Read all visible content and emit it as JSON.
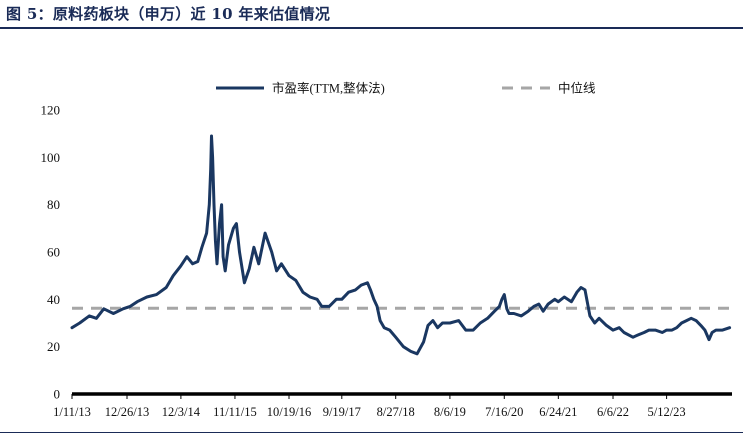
{
  "title": "图 5：原料药板块（申万）近 10 年来估值情况",
  "chart_data": {
    "type": "line",
    "title": "图 5：原料药板块（申万）近 10 年来估值情况",
    "xlabel": "",
    "ylabel": "",
    "ylim": [
      0,
      120
    ],
    "yticks": [
      0,
      20,
      40,
      60,
      80,
      100,
      120
    ],
    "xlim": [
      "2013-01-11",
      "2024-06-30"
    ],
    "xtick_labels": [
      "1/11/13",
      "12/26/13",
      "12/3/14",
      "11/11/15",
      "10/19/16",
      "9/19/17",
      "8/27/18",
      "8/6/19",
      "7/16/20",
      "6/24/21",
      "6/6/22",
      "5/12/23"
    ],
    "xtick_dates": [
      "2013-01-11",
      "2013-12-26",
      "2014-12-03",
      "2015-11-11",
      "2016-10-19",
      "2017-09-19",
      "2018-08-27",
      "2019-08-06",
      "2020-07-16",
      "2021-06-24",
      "2022-06-06",
      "2023-05-12"
    ],
    "grid": false,
    "legend_position": "top",
    "series": [
      {
        "name": "市盈率(TTM,整体法)",
        "color": "#1a3761",
        "style": "solid",
        "points": [
          [
            "2013-01-11",
            28
          ],
          [
            "2013-03-01",
            30
          ],
          [
            "2013-05-01",
            33
          ],
          [
            "2013-06-15",
            32
          ],
          [
            "2013-08-01",
            36
          ],
          [
            "2013-10-01",
            34
          ],
          [
            "2013-12-01",
            36
          ],
          [
            "2014-01-15",
            37
          ],
          [
            "2014-03-01",
            39
          ],
          [
            "2014-05-01",
            41
          ],
          [
            "2014-07-01",
            42
          ],
          [
            "2014-09-01",
            45
          ],
          [
            "2014-10-15",
            50
          ],
          [
            "2014-12-01",
            54
          ],
          [
            "2015-01-10",
            58
          ],
          [
            "2015-02-15",
            55
          ],
          [
            "2015-03-20",
            56
          ],
          [
            "2015-04-15",
            62
          ],
          [
            "2015-05-15",
            68
          ],
          [
            "2015-06-01",
            80
          ],
          [
            "2015-06-10",
            95
          ],
          [
            "2015-06-15",
            109
          ],
          [
            "2015-06-22",
            100
          ],
          [
            "2015-07-01",
            80
          ],
          [
            "2015-07-10",
            65
          ],
          [
            "2015-07-20",
            55
          ],
          [
            "2015-08-05",
            72
          ],
          [
            "2015-08-18",
            80
          ],
          [
            "2015-08-28",
            58
          ],
          [
            "2015-09-10",
            52
          ],
          [
            "2015-10-01",
            63
          ],
          [
            "2015-11-01",
            70
          ],
          [
            "2015-11-20",
            72
          ],
          [
            "2015-12-10",
            60
          ],
          [
            "2016-01-10",
            47
          ],
          [
            "2016-02-10",
            53
          ],
          [
            "2016-03-10",
            62
          ],
          [
            "2016-04-10",
            55
          ],
          [
            "2016-05-20",
            68
          ],
          [
            "2016-07-01",
            60
          ],
          [
            "2016-08-01",
            52
          ],
          [
            "2016-09-01",
            55
          ],
          [
            "2016-10-19",
            50
          ],
          [
            "2016-12-01",
            48
          ],
          [
            "2017-01-15",
            43
          ],
          [
            "2017-03-01",
            41
          ],
          [
            "2017-04-15",
            40
          ],
          [
            "2017-05-15",
            37
          ],
          [
            "2017-07-01",
            37
          ],
          [
            "2017-08-15",
            40
          ],
          [
            "2017-09-19",
            40
          ],
          [
            "2017-11-01",
            43
          ],
          [
            "2017-12-15",
            44
          ],
          [
            "2018-01-20",
            46
          ],
          [
            "2018-03-01",
            47
          ],
          [
            "2018-03-20",
            44
          ],
          [
            "2018-04-10",
            40
          ],
          [
            "2018-05-01",
            37
          ],
          [
            "2018-05-20",
            31
          ],
          [
            "2018-06-15",
            28
          ],
          [
            "2018-07-20",
            27
          ],
          [
            "2018-08-27",
            24
          ],
          [
            "2018-10-15",
            20
          ],
          [
            "2018-12-01",
            18
          ],
          [
            "2019-01-10",
            17
          ],
          [
            "2019-02-20",
            22
          ],
          [
            "2019-03-20",
            29
          ],
          [
            "2019-04-20",
            31
          ],
          [
            "2019-05-20",
            28
          ],
          [
            "2019-06-20",
            30
          ],
          [
            "2019-08-06",
            30
          ],
          [
            "2019-10-01",
            31
          ],
          [
            "2019-11-15",
            27
          ],
          [
            "2020-01-01",
            27
          ],
          [
            "2020-02-15",
            30
          ],
          [
            "2020-04-01",
            32
          ],
          [
            "2020-05-15",
            35
          ],
          [
            "2020-06-15",
            37
          ],
          [
            "2020-07-01",
            40
          ],
          [
            "2020-07-16",
            42
          ],
          [
            "2020-08-01",
            36
          ],
          [
            "2020-08-15",
            34
          ],
          [
            "2020-09-15",
            34
          ],
          [
            "2020-11-01",
            33
          ],
          [
            "2020-12-15",
            35
          ],
          [
            "2021-01-20",
            37
          ],
          [
            "2021-02-20",
            38
          ],
          [
            "2021-03-20",
            35
          ],
          [
            "2021-04-20",
            38
          ],
          [
            "2021-06-01",
            40
          ],
          [
            "2021-06-24",
            39
          ],
          [
            "2021-08-01",
            41
          ],
          [
            "2021-09-15",
            39
          ],
          [
            "2021-10-20",
            43
          ],
          [
            "2021-11-15",
            45
          ],
          [
            "2021-12-10",
            44
          ],
          [
            "2022-01-10",
            33
          ],
          [
            "2022-02-10",
            30
          ],
          [
            "2022-03-10",
            32
          ],
          [
            "2022-04-25",
            29
          ],
          [
            "2022-06-06",
            27
          ],
          [
            "2022-07-15",
            28
          ],
          [
            "2022-08-15",
            26
          ],
          [
            "2022-10-10",
            24
          ],
          [
            "2022-11-15",
            25
          ],
          [
            "2022-12-20",
            26
          ],
          [
            "2023-01-20",
            27
          ],
          [
            "2023-03-01",
            27
          ],
          [
            "2023-04-15",
            26
          ],
          [
            "2023-05-12",
            27
          ],
          [
            "2023-06-15",
            27
          ],
          [
            "2023-07-15",
            28
          ],
          [
            "2023-08-15",
            30
          ],
          [
            "2023-09-15",
            31
          ],
          [
            "2023-10-15",
            32
          ],
          [
            "2023-11-15",
            31
          ],
          [
            "2023-12-15",
            29
          ],
          [
            "2024-01-10",
            27
          ],
          [
            "2024-02-05",
            23
          ],
          [
            "2024-02-25",
            26
          ],
          [
            "2024-03-20",
            27
          ],
          [
            "2024-05-01",
            27
          ],
          [
            "2024-06-15",
            28
          ]
        ]
      },
      {
        "name": "中位线",
        "color": "#a6a6a6",
        "style": "dashed",
        "points": [
          [
            "2013-01-11",
            36.2
          ],
          [
            "2024-06-30",
            36.2
          ]
        ]
      }
    ]
  }
}
